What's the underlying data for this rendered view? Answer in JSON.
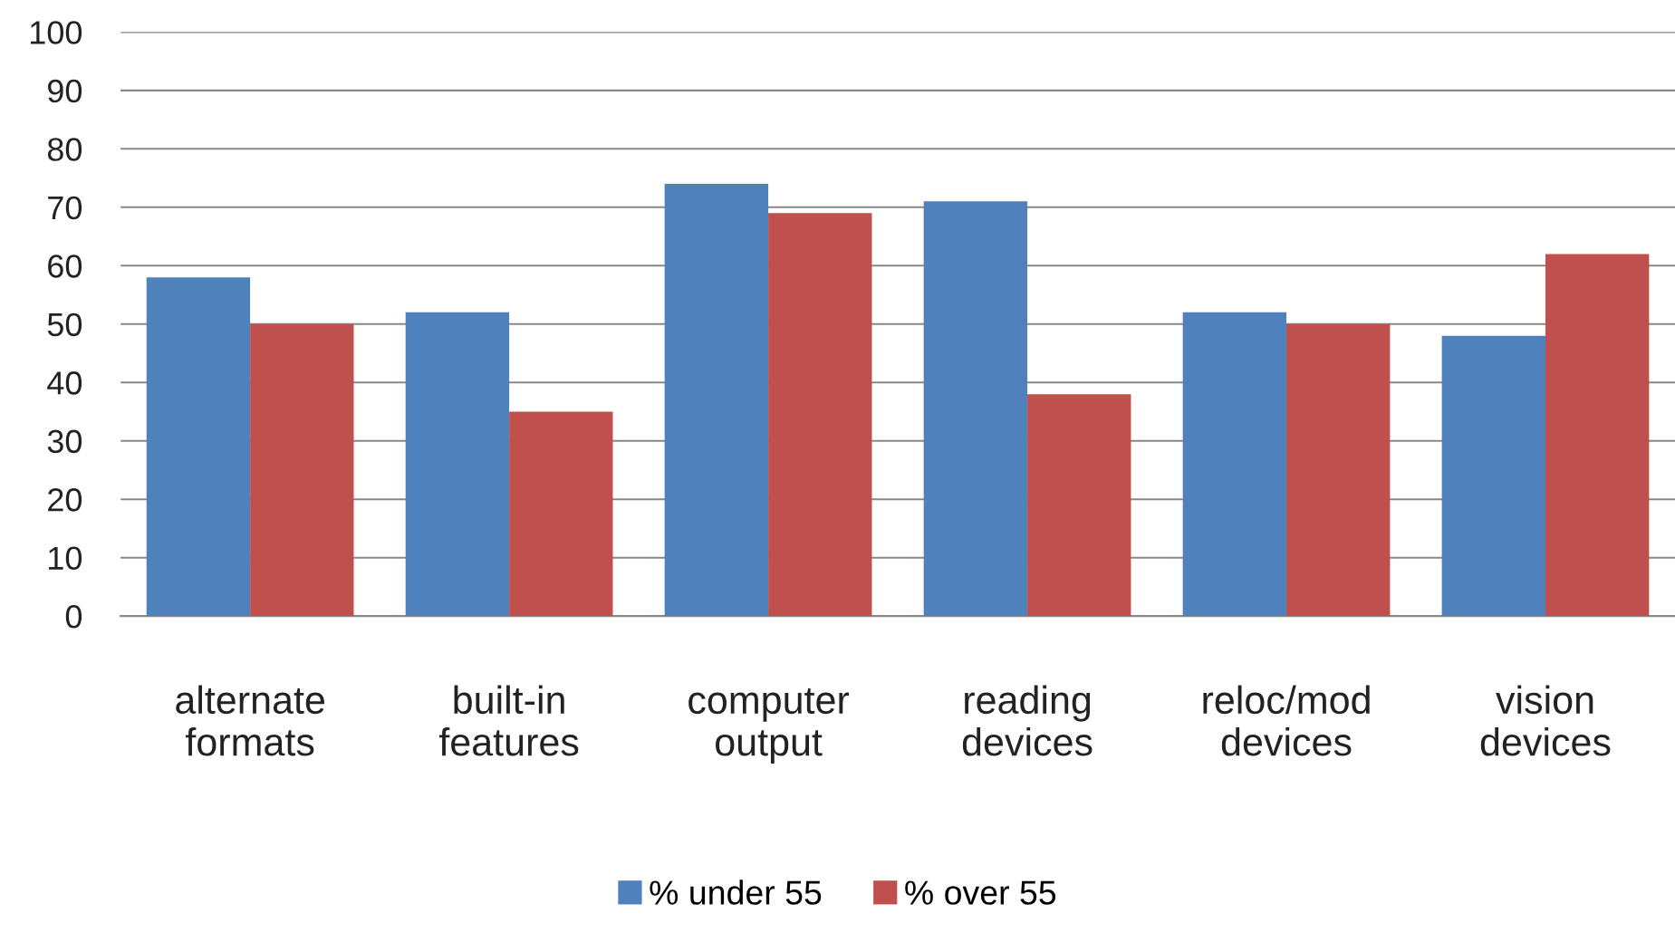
{
  "chart_data": {
    "type": "bar",
    "categories": [
      "alternate\nformats",
      "built-in\nfeatures",
      "computer\noutput",
      "reading\ndevices",
      "reloc/mod\ndevices",
      "vision\ndevices"
    ],
    "series": [
      {
        "name": "% under 55",
        "color": "#4f81bd",
        "values": [
          58,
          52,
          74,
          71,
          52,
          48
        ]
      },
      {
        "name": "% over 55",
        "color": "#c0504d",
        "values": [
          50,
          35,
          69,
          38,
          50,
          62
        ]
      }
    ],
    "ylim": [
      0,
      100
    ],
    "yticks": [
      0,
      10,
      20,
      30,
      40,
      50,
      60,
      70,
      80,
      90,
      100
    ],
    "grid": "y",
    "legend": "bottom"
  }
}
